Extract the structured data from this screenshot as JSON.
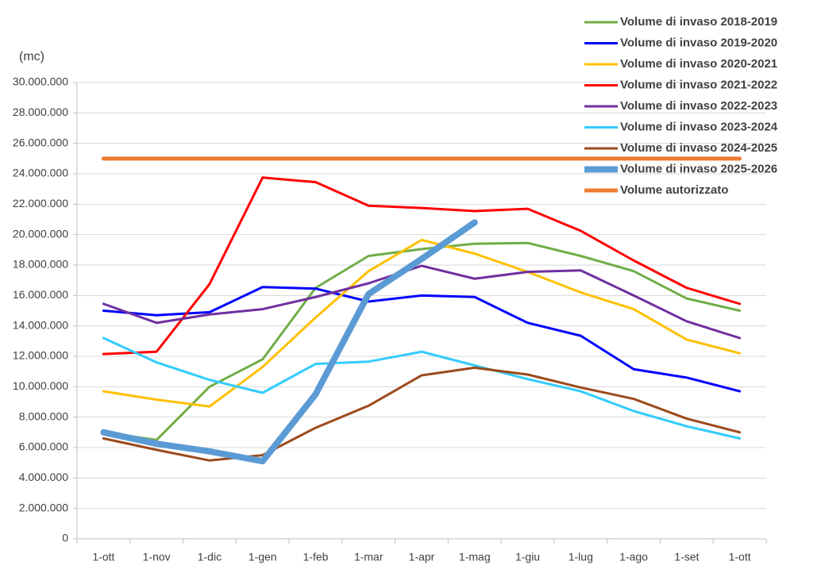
{
  "chart_data": {
    "type": "line",
    "y_label": "(mc)",
    "categories": [
      "1-ott",
      "1-nov",
      "1-dic",
      "1-gen",
      "1-feb",
      "1-mar",
      "1-apr",
      "1-mag",
      "1-giu",
      "1-lug",
      "1-ago",
      "1-set",
      "1-ott"
    ],
    "ylim": [
      0,
      30000000
    ],
    "yticks": [
      0,
      {
        "value": 2000000,
        "label": "2.000.000"
      },
      {
        "value": 4000000,
        "label": "4.000.000"
      },
      {
        "value": 6000000,
        "label": "6.000.000"
      },
      {
        "value": 8000000,
        "label": "8.000.000"
      },
      {
        "value": 10000000,
        "label": "10.000.000"
      },
      {
        "value": 12000000,
        "label": "12.000.000"
      },
      {
        "value": 14000000,
        "label": "14.000.000"
      },
      {
        "value": 16000000,
        "label": "16.000.000"
      },
      {
        "value": 18000000,
        "label": "18.000.000"
      },
      {
        "value": 20000000,
        "label": "20.000.000"
      },
      {
        "value": 22000000,
        "label": "22.000.000"
      },
      {
        "value": 24000000,
        "label": "24.000.000"
      },
      {
        "value": 26000000,
        "label": "26.000.000"
      },
      {
        "value": 28000000,
        "label": "28.000.000"
      },
      {
        "value": 30000000,
        "label": "30.000.000"
      }
    ],
    "grid": true,
    "legend": "top-right",
    "series": [
      {
        "name": "Volume di invaso 2018-2019",
        "color": "#70ad47",
        "width": 3,
        "values": [
          7000000,
          6500000,
          10000000,
          11800000,
          16500000,
          18600000,
          19050000,
          19400000,
          19450000,
          18600000,
          17600000,
          15800000,
          15000000
        ]
      },
      {
        "name": "Volume di invaso 2019-2020",
        "color": "#0000ff",
        "width": 3,
        "values": [
          15000000,
          14700000,
          14900000,
          16550000,
          16450000,
          15600000,
          16000000,
          15900000,
          14200000,
          13350000,
          11150000,
          10600000,
          9700000
        ]
      },
      {
        "name": "Volume di invaso 2020-2021",
        "color": "#ffc000",
        "width": 3,
        "values": [
          9700000,
          9150000,
          8700000,
          11300000,
          14550000,
          17600000,
          19650000,
          18750000,
          17550000,
          16200000,
          15100000,
          13100000,
          12200000
        ]
      },
      {
        "name": "Volume di invaso 2021-2022",
        "color": "#ff0000",
        "width": 3,
        "values": [
          12150000,
          12300000,
          16750000,
          23750000,
          23450000,
          21900000,
          21750000,
          21550000,
          21700000,
          20250000,
          18300000,
          16500000,
          15450000
        ]
      },
      {
        "name": "Volume di invaso 2022-2023",
        "color": "#7030a0",
        "width": 3,
        "values": [
          15450000,
          14200000,
          14750000,
          15100000,
          15900000,
          16800000,
          17950000,
          17100000,
          17550000,
          17650000,
          16000000,
          14300000,
          13200000
        ]
      },
      {
        "name": "Volume di invaso 2023-2024",
        "color": "#33ccff",
        "width": 3,
        "values": [
          13200000,
          11600000,
          10450000,
          9600000,
          11500000,
          11650000,
          12300000,
          11400000,
          10500000,
          9700000,
          8400000,
          7400000,
          6600000
        ]
      },
      {
        "name": "Volume di invaso 2024-2025",
        "color": "#9c4a1c",
        "width": 3,
        "values": [
          6600000,
          5850000,
          5150000,
          5500000,
          7300000,
          8750000,
          10750000,
          11250000,
          10800000,
          9950000,
          9200000,
          7900000,
          7000000
        ]
      },
      {
        "name": "Volume di invaso 2025-2026",
        "color": "#5b9bd5",
        "width": 8,
        "values": [
          7000000,
          6250000,
          5750000,
          5100000,
          9500000,
          16100000,
          18400000,
          20800000,
          null,
          null,
          null,
          null,
          null
        ]
      },
      {
        "name": "Volume autorizzato",
        "color": "#ed7d31",
        "width": 5,
        "values": [
          25000000,
          25000000,
          25000000,
          25000000,
          25000000,
          25000000,
          25000000,
          25000000,
          25000000,
          25000000,
          25000000,
          25000000,
          25000000
        ]
      }
    ]
  }
}
